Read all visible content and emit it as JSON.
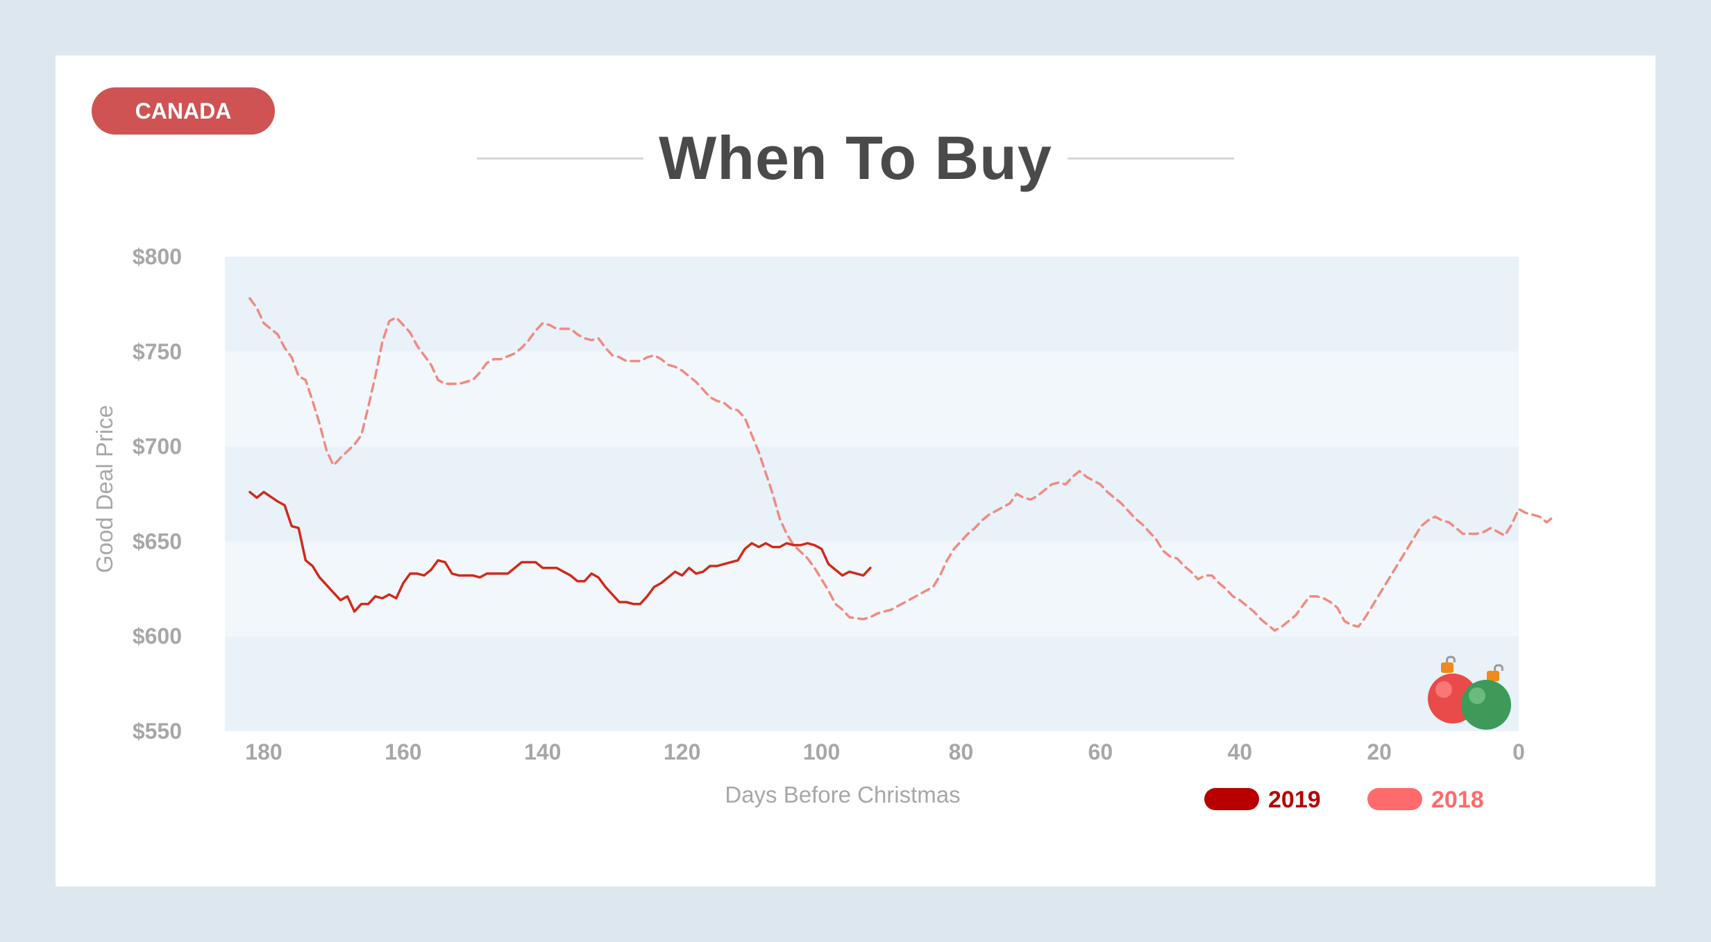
{
  "badge": "CANADA",
  "title": "When To Buy",
  "colors": {
    "page_bg": "#dde7f0",
    "badge_bg": "#d05353",
    "series_2019": "#d02a1a",
    "series_2018": "#f08a80",
    "legend_2019": "#b80000",
    "legend_2018": "#ff6b6b",
    "band_dark": "#e9f1f9",
    "band_light": "#f2f7fc"
  },
  "decoration": [
    "ornament-red-icon",
    "ornament-green-icon"
  ],
  "chart_data": {
    "type": "line",
    "xlabel": "Days Before Christmas",
    "ylabel": "Good Deal Price",
    "xlim": [
      185,
      0
    ],
    "ylim": [
      550,
      800
    ],
    "x_ticks": [
      180,
      160,
      140,
      120,
      100,
      80,
      60,
      40,
      20,
      0
    ],
    "y_ticks": [
      {
        "value": 800,
        "label": "$800"
      },
      {
        "value": 750,
        "label": "$750"
      },
      {
        "value": 700,
        "label": "$700"
      },
      {
        "value": 650,
        "label": "$650"
      },
      {
        "value": 600,
        "label": "$600"
      },
      {
        "value": 550,
        "label": "$550"
      }
    ],
    "grid": "alternating horizontal bands",
    "legend_position": "bottom-right",
    "series": [
      {
        "name": "2019",
        "style": "solid",
        "points": [
          [
            182,
            676
          ],
          [
            181,
            673
          ],
          [
            180,
            676
          ],
          [
            178,
            671
          ],
          [
            177,
            669
          ],
          [
            176,
            658
          ],
          [
            175,
            657
          ],
          [
            174,
            640
          ],
          [
            173,
            637
          ],
          [
            172,
            631
          ],
          [
            171,
            627
          ],
          [
            170,
            623
          ],
          [
            169,
            619
          ],
          [
            168,
            621
          ],
          [
            167,
            613
          ],
          [
            166,
            617
          ],
          [
            165,
            617
          ],
          [
            164,
            621
          ],
          [
            163,
            620
          ],
          [
            162,
            622
          ],
          [
            161,
            620
          ],
          [
            160,
            628
          ],
          [
            159,
            633
          ],
          [
            158,
            633
          ],
          [
            157,
            632
          ],
          [
            156,
            635
          ],
          [
            155,
            640
          ],
          [
            154,
            639
          ],
          [
            153,
            633
          ],
          [
            152,
            632
          ],
          [
            150,
            632
          ],
          [
            149,
            631
          ],
          [
            148,
            633
          ],
          [
            145,
            633
          ],
          [
            144,
            636
          ],
          [
            143,
            639
          ],
          [
            141,
            639
          ],
          [
            140,
            636
          ],
          [
            138,
            636
          ],
          [
            137,
            634
          ],
          [
            136,
            632
          ],
          [
            135,
            629
          ],
          [
            134,
            629
          ],
          [
            133,
            633
          ],
          [
            132,
            631
          ],
          [
            131,
            626
          ],
          [
            130,
            622
          ],
          [
            129,
            618
          ],
          [
            128,
            618
          ],
          [
            127,
            617
          ],
          [
            126,
            617
          ],
          [
            125,
            621
          ],
          [
            124,
            626
          ],
          [
            123,
            628
          ],
          [
            122,
            631
          ],
          [
            121,
            634
          ],
          [
            120,
            632
          ],
          [
            119,
            636
          ],
          [
            118,
            633
          ],
          [
            117,
            634
          ],
          [
            116,
            637
          ],
          [
            115,
            637
          ],
          [
            114,
            638
          ],
          [
            113,
            639
          ],
          [
            112,
            640
          ],
          [
            111,
            646
          ],
          [
            110,
            649
          ],
          [
            109,
            647
          ],
          [
            108,
            649
          ],
          [
            107,
            647
          ],
          [
            106,
            647
          ],
          [
            105,
            649
          ],
          [
            104,
            648
          ],
          [
            103,
            648
          ],
          [
            102,
            649
          ],
          [
            101,
            648
          ],
          [
            100,
            646
          ],
          [
            99,
            638
          ],
          [
            98,
            635
          ],
          [
            97,
            632
          ],
          [
            96,
            634
          ],
          [
            94,
            632
          ],
          [
            93,
            636
          ]
        ]
      },
      {
        "name": "2018",
        "style": "dashed",
        "points": [
          [
            182,
            778
          ],
          [
            181,
            773
          ],
          [
            180,
            765
          ],
          [
            178,
            759
          ],
          [
            177,
            752
          ],
          [
            176,
            747
          ],
          [
            175,
            737
          ],
          [
            174,
            735
          ],
          [
            173,
            724
          ],
          [
            172,
            712
          ],
          [
            171,
            698
          ],
          [
            170,
            690
          ],
          [
            169,
            694
          ],
          [
            167,
            701
          ],
          [
            166,
            706
          ],
          [
            165,
            721
          ],
          [
            164,
            737
          ],
          [
            163,
            755
          ],
          [
            162,
            766
          ],
          [
            161,
            768
          ],
          [
            160,
            764
          ],
          [
            159,
            760
          ],
          [
            158,
            753
          ],
          [
            156,
            743
          ],
          [
            155,
            735
          ],
          [
            154,
            733
          ],
          [
            152,
            733
          ],
          [
            150,
            735
          ],
          [
            149,
            739
          ],
          [
            148,
            744
          ],
          [
            147,
            746
          ],
          [
            146,
            746
          ],
          [
            144,
            749
          ],
          [
            143,
            752
          ],
          [
            142,
            756
          ],
          [
            141,
            761
          ],
          [
            140,
            765
          ],
          [
            139,
            764
          ],
          [
            138,
            762
          ],
          [
            136,
            762
          ],
          [
            135,
            759
          ],
          [
            134,
            757
          ],
          [
            133,
            756
          ],
          [
            132,
            757
          ],
          [
            131,
            752
          ],
          [
            130,
            748
          ],
          [
            129,
            747
          ],
          [
            128,
            745
          ],
          [
            127,
            745
          ],
          [
            126,
            745
          ],
          [
            125,
            747
          ],
          [
            124,
            748
          ],
          [
            123,
            746
          ],
          [
            122,
            743
          ],
          [
            121,
            742
          ],
          [
            120,
            740
          ],
          [
            119,
            737
          ],
          [
            118,
            734
          ],
          [
            117,
            730
          ],
          [
            116,
            726
          ],
          [
            115,
            724
          ],
          [
            114,
            723
          ],
          [
            113,
            720
          ],
          [
            112,
            719
          ],
          [
            111,
            715
          ],
          [
            110,
            706
          ],
          [
            109,
            697
          ],
          [
            108,
            686
          ],
          [
            107,
            675
          ],
          [
            106,
            662
          ],
          [
            105,
            654
          ],
          [
            104,
            648
          ],
          [
            102,
            641
          ],
          [
            101,
            636
          ],
          [
            100,
            630
          ],
          [
            99,
            624
          ],
          [
            98,
            617
          ],
          [
            97,
            614
          ],
          [
            96,
            610
          ],
          [
            94,
            609
          ],
          [
            93,
            610
          ],
          [
            92,
            612
          ],
          [
            91,
            613
          ],
          [
            90,
            614
          ],
          [
            89,
            616
          ],
          [
            88,
            618
          ],
          [
            87,
            620
          ],
          [
            86,
            622
          ],
          [
            85,
            624
          ],
          [
            84,
            626
          ],
          [
            83,
            632
          ],
          [
            82,
            640
          ],
          [
            81,
            646
          ],
          [
            80,
            650
          ],
          [
            79,
            654
          ],
          [
            78,
            657
          ],
          [
            77,
            661
          ],
          [
            76,
            664
          ],
          [
            75,
            666
          ],
          [
            74,
            668
          ],
          [
            73,
            670
          ],
          [
            72,
            675
          ],
          [
            71,
            673
          ],
          [
            70,
            672
          ],
          [
            69,
            674
          ],
          [
            68,
            677
          ],
          [
            67,
            680
          ],
          [
            66,
            681
          ],
          [
            65,
            680
          ],
          [
            64,
            684
          ],
          [
            63,
            687
          ],
          [
            62,
            684
          ],
          [
            60,
            680
          ],
          [
            59,
            676
          ],
          [
            58,
            673
          ],
          [
            57,
            670
          ],
          [
            56,
            666
          ],
          [
            55,
            662
          ],
          [
            54,
            659
          ],
          [
            53,
            655
          ],
          [
            52,
            651
          ],
          [
            51,
            645
          ],
          [
            50,
            642
          ],
          [
            49,
            641
          ],
          [
            48,
            637
          ],
          [
            47,
            634
          ],
          [
            46,
            630
          ],
          [
            45,
            632
          ],
          [
            44,
            632
          ],
          [
            43,
            628
          ],
          [
            42,
            625
          ],
          [
            41,
            621
          ],
          [
            40,
            619
          ],
          [
            39,
            616
          ],
          [
            38,
            613
          ],
          [
            37,
            609
          ],
          [
            36,
            606
          ],
          [
            35,
            603
          ],
          [
            34,
            605
          ],
          [
            33,
            608
          ],
          [
            32,
            611
          ],
          [
            31,
            616
          ],
          [
            30,
            621
          ],
          [
            29,
            621
          ],
          [
            28,
            620
          ],
          [
            27,
            618
          ],
          [
            26,
            615
          ],
          [
            25,
            608
          ],
          [
            24,
            606
          ],
          [
            23,
            605
          ],
          [
            22,
            610
          ],
          [
            21,
            616
          ],
          [
            20,
            622
          ],
          [
            19,
            628
          ],
          [
            18,
            634
          ],
          [
            17,
            640
          ],
          [
            16,
            646
          ],
          [
            15,
            652
          ],
          [
            14,
            658
          ],
          [
            13,
            661
          ],
          [
            12,
            663
          ],
          [
            11,
            661
          ],
          [
            10,
            660
          ],
          [
            9,
            657
          ],
          [
            8,
            654
          ],
          [
            7,
            654
          ],
          [
            6,
            654
          ],
          [
            5,
            655
          ],
          [
            4,
            657
          ],
          [
            3,
            655
          ],
          [
            2,
            653
          ],
          [
            1,
            659
          ],
          [
            0,
            667
          ],
          [
            -1,
            665
          ],
          [
            -2,
            664
          ],
          [
            -3,
            663
          ],
          [
            -4,
            660
          ],
          [
            -5,
            663
          ]
        ]
      }
    ]
  }
}
